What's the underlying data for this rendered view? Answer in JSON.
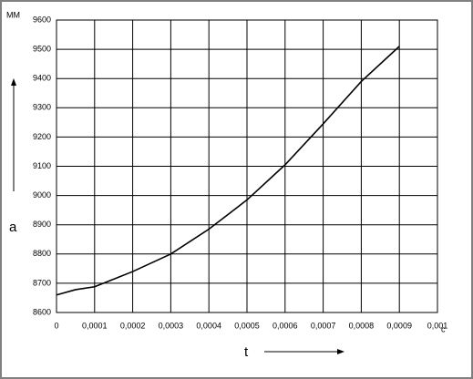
{
  "chart_data": {
    "type": "line",
    "y_unit": "ММ",
    "x_unit": "с",
    "ylabel": "a",
    "xlabel": "t",
    "x": [
      0,
      5e-05,
      0.0001,
      0.0002,
      0.0003,
      0.0004,
      0.0005,
      0.0006,
      0.0007,
      0.0008,
      0.0009
    ],
    "series": [
      {
        "color": "#000000",
        "values": [
          8660,
          8678,
          8688,
          8740,
          8800,
          8885,
          8985,
          9105,
          9245,
          9390,
          9510
        ]
      }
    ],
    "xlim": [
      0,
      0.001
    ],
    "xticks": [
      0,
      {
        "value": 0.0001,
        "label": "0,0001"
      },
      {
        "value": 0.0002,
        "label": "0,0002"
      },
      {
        "value": 0.0003,
        "label": "0,0003"
      },
      {
        "value": 0.0004,
        "label": "0,0004"
      },
      {
        "value": 0.0005,
        "label": "0,0005"
      },
      {
        "value": 0.0006,
        "label": "0,0006"
      },
      {
        "value": 0.0007,
        "label": "0,0007"
      },
      {
        "value": 0.0008,
        "label": "0,0008"
      },
      {
        "value": 0.0009,
        "label": "0,0009"
      },
      {
        "value": 0.001,
        "label": "0,001"
      }
    ],
    "ylim": [
      8600,
      9600
    ],
    "yticks": [
      8600,
      8700,
      8800,
      8900,
      9000,
      9100,
      9200,
      9300,
      9400,
      9500,
      9600
    ],
    "grid": true
  }
}
